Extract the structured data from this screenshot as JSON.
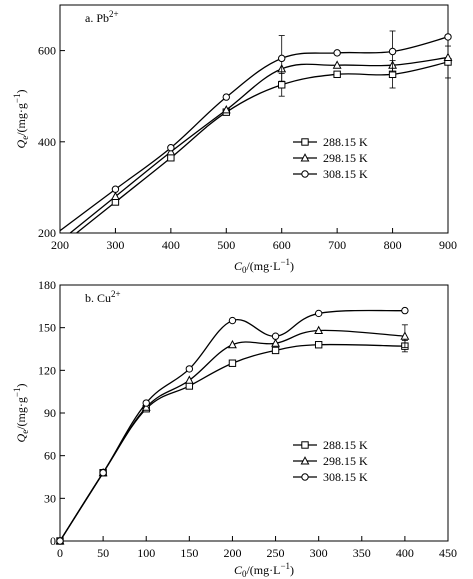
{
  "chart_data": [
    {
      "type": "line",
      "panel_label": "a. Pb",
      "panel_label_sup": "2+",
      "ylabel_main": "Q",
      "ylabel_sub": "e",
      "ylabel_unit": "/(mg·g",
      "ylabel_unit_sup": "−1",
      "ylabel_close": ")",
      "xlabel_main": "C",
      "xlabel_sub": "0",
      "xlabel_unit": "/(mg·L",
      "xlabel_unit_sup": "−1",
      "xlabel_close": ")",
      "xlim": [
        200,
        900
      ],
      "ylim": [
        200,
        700
      ],
      "xticks": [
        200,
        300,
        400,
        500,
        600,
        700,
        800,
        900
      ],
      "yticks": [
        200,
        400,
        600
      ],
      "x": [
        300,
        400,
        500,
        600,
        700,
        800,
        900
      ],
      "series": [
        {
          "name": "288.15 K",
          "marker": "square",
          "values": [
            268,
            365,
            465,
            525,
            548,
            548,
            575
          ],
          "errors": [
            0,
            0,
            0,
            25,
            0,
            30,
            35
          ]
        },
        {
          "name": "298.15 K",
          "marker": "triangle",
          "values": [
            280,
            378,
            470,
            560,
            568,
            568,
            585
          ],
          "errors": [
            0,
            0,
            0,
            0,
            0,
            0,
            0
          ]
        },
        {
          "name": "308.15 K",
          "marker": "circle",
          "values": [
            296,
            387,
            498,
            583,
            595,
            598,
            630
          ],
          "errors": [
            0,
            0,
            0,
            50,
            0,
            45,
            0
          ]
        }
      ],
      "legend_position": "right"
    },
    {
      "type": "line",
      "panel_label": "b. Cu",
      "panel_label_sup": "2+",
      "ylabel_main": "Q",
      "ylabel_sub": "e",
      "ylabel_unit": "/(mg·g",
      "ylabel_unit_sup": "−1",
      "ylabel_close": ")",
      "xlabel_main": "C",
      "xlabel_sub": "0",
      "xlabel_unit": "/(mg·L",
      "xlabel_unit_sup": "−1",
      "xlabel_close": ")",
      "xlim": [
        0,
        450
      ],
      "ylim": [
        0,
        180
      ],
      "xticks": [
        0,
        50,
        100,
        150,
        200,
        250,
        300,
        350,
        400,
        450
      ],
      "yticks": [
        0,
        30,
        60,
        90,
        120,
        150,
        180
      ],
      "x": [
        0,
        50,
        100,
        150,
        200,
        250,
        300,
        400
      ],
      "series": [
        {
          "name": "288.15 K",
          "marker": "square",
          "values": [
            0,
            48,
            93,
            109,
            125,
            134,
            138,
            137
          ],
          "errors": [
            0,
            0,
            0,
            0,
            0,
            0,
            0,
            4
          ]
        },
        {
          "name": "298.15 K",
          "marker": "triangle",
          "values": [
            0,
            48,
            94,
            113,
            138,
            139,
            148,
            144
          ],
          "errors": [
            0,
            0,
            0,
            0,
            0,
            0,
            0,
            8
          ]
        },
        {
          "name": "308.15 K",
          "marker": "circle",
          "values": [
            0,
            48,
            97,
            121,
            155,
            144,
            160,
            162
          ],
          "errors": [
            0,
            0,
            0,
            0,
            0,
            0,
            0,
            0
          ]
        }
      ],
      "legend_position": "right"
    }
  ]
}
